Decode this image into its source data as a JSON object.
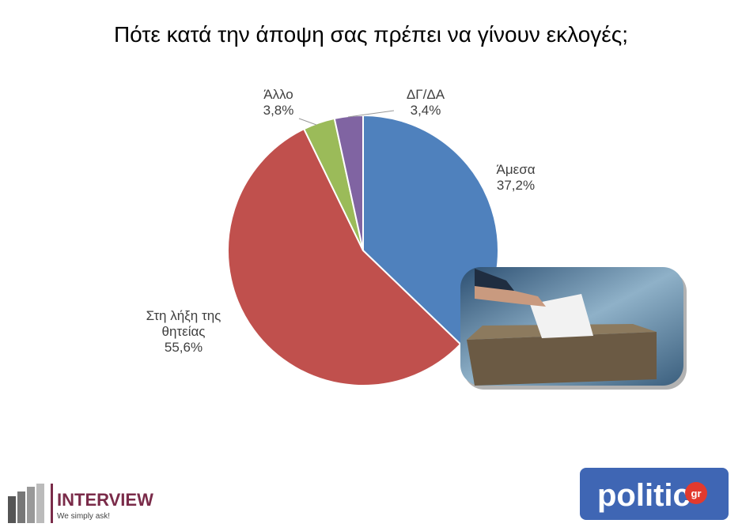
{
  "chart_data": {
    "type": "pie",
    "title": "Πότε κατά την άποψη σας πρέπει να γίνουν εκλογές;",
    "categories": [
      "Άμεσα",
      "Στη λήξη της θητείας",
      "Άλλο",
      "ΔΓ/ΔΑ"
    ],
    "values": [
      37.2,
      55.6,
      3.8,
      3.4
    ],
    "value_labels": [
      "37,2%",
      "55,6%",
      "3,8%",
      "3,4%"
    ],
    "colors": [
      "#4f81bd",
      "#c0504d",
      "#9bbb59",
      "#8064a2"
    ]
  },
  "logos": {
    "interview": "INTERVIEW",
    "interview_tagline": "We simply ask!",
    "politic": "politic",
    "politic_suffix": "gr"
  }
}
